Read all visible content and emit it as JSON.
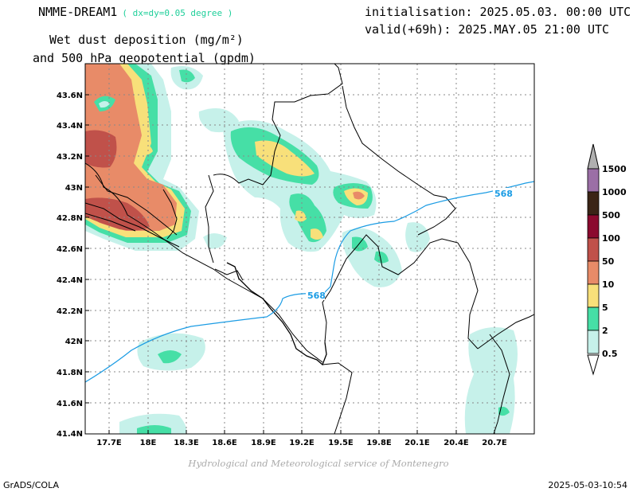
{
  "header": {
    "model": "NMME-DREAM1",
    "resolution": "( dx=dy=0.05 degree )",
    "variable_line1": "Wet dust deposition (mg/m²)",
    "variable_line2": "and 500 hPa geopotential (gpdm)",
    "init": "initialisation: 2025.05.03. 00:00 UTC",
    "valid": "valid(+69h): 2025.MAY.05 21:00 UTC"
  },
  "map": {
    "lat_labels": [
      "43.6N",
      "43.4N",
      "43.2N",
      "43N",
      "42.8N",
      "42.6N",
      "42.4N",
      "42.2N",
      "42N",
      "41.8N",
      "41.6N",
      "41.4N"
    ],
    "lon_labels": [
      "17.7E",
      "18E",
      "18.3E",
      "18.6E",
      "18.9E",
      "19.2E",
      "19.5E",
      "19.8E",
      "20.1E",
      "20.4E",
      "20.7E"
    ],
    "lat_range": [
      41.4,
      43.8
    ],
    "lon_range": [
      17.5,
      21.0
    ],
    "grid": true,
    "contour_label": "568",
    "contour_level": 568
  },
  "legend": {
    "labels": [
      "1500",
      "1000",
      "500",
      "100",
      "50",
      "10",
      "5",
      "2",
      "0.5"
    ],
    "colors": [
      "#9b6fa6",
      "#3b2416",
      "#8b0a2e",
      "#c0514a",
      "#e88b68",
      "#f8e07a",
      "#46dfa6",
      "#c6f1ea"
    ]
  },
  "colors": {
    "lowest": "#c6f1ea",
    "low": "#46dfa6",
    "mid": "#f8e07a",
    "high": "#e88b68",
    "higher": "#c0514a",
    "contour": "#1b9ce4"
  },
  "footer": {
    "credit": "Hydrological and Meteorological service of Montenegro",
    "left": "GrADS/COLA",
    "right": "2025-05-03-10:54"
  }
}
